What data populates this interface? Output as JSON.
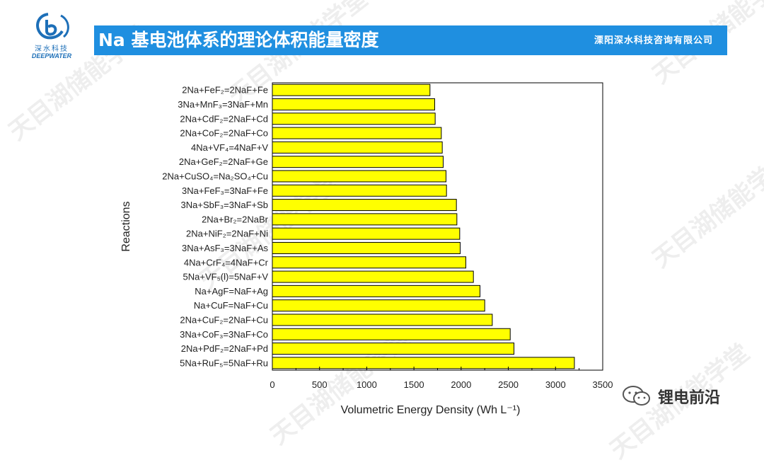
{
  "header": {
    "logo_cn": "深水科技",
    "logo_en": "DEEPWATER",
    "title": "Na 基电池体系的理论体积能量密度",
    "company": "溧阳深水科技咨询有限公司"
  },
  "watermark": "天目湖储能学堂",
  "footer": {
    "account": "锂电前沿"
  },
  "colors": {
    "bar_fill": "#ffff00",
    "bar_stroke": "#000000",
    "title_bar": "#1f8fe0",
    "logo": "#1d6fb8"
  },
  "chart_data": {
    "type": "bar",
    "orientation": "horizontal",
    "xlabel": "Volumetric Energy Density (Wh L⁻¹)",
    "ylabel": "Reactions",
    "xlim": [
      0,
      3500
    ],
    "xticks": [
      0,
      500,
      1000,
      1500,
      2000,
      2500,
      3000,
      3500
    ],
    "grid": false,
    "categories": [
      "2Na+FeF₂=2NaF+Fe",
      "3Na+MnF₃=3NaF+Mn",
      "2Na+CdF₂=2NaF+Cd",
      "2Na+CoF₂=2NaF+Co",
      "4Na+VF₄=4NaF+V",
      "2Na+GeF₂=2NaF+Ge",
      "2Na+CuSO₄=Na₂SO₄+Cu",
      "3Na+FeF₃=3NaF+Fe",
      "3Na+SbF₃=3NaF+Sb",
      "2Na+Br₂=2NaBr",
      "2Na+NiF₂=2NaF+Ni",
      "3Na+AsF₃=3NaF+As",
      "4Na+CrF₄=4NaF+Cr",
      "5Na+VF₅(l)=5NaF+V",
      "Na+AgF=NaF+Ag",
      "Na+CuF=NaF+Cu",
      "2Na+CuF₂=2NaF+Cu",
      "3Na+CoF₃=3NaF+Co",
      "2Na+PdF₂=2NaF+Pd",
      "5Na+RuF₅=5NaF+Ru"
    ],
    "values": [
      1670,
      1720,
      1725,
      1790,
      1800,
      1810,
      1840,
      1845,
      1950,
      1955,
      1985,
      1990,
      2050,
      2130,
      2200,
      2250,
      2330,
      2520,
      2560,
      3200
    ]
  }
}
